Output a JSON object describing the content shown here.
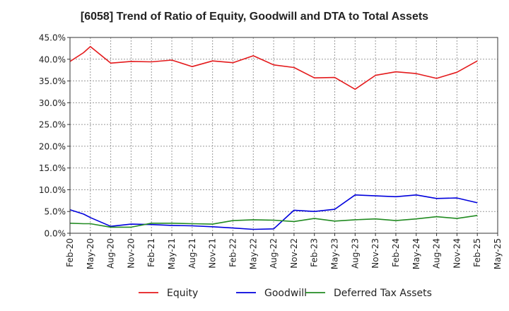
{
  "chart_data": {
    "type": "line",
    "title": "[6058]  Trend of Ratio of Equity, Goodwill and DTA to Total Assets",
    "xlabel": "",
    "ylabel": "",
    "ylim": [
      0,
      45
    ],
    "y_ticks": [
      "0.0%",
      "5.0%",
      "10.0%",
      "15.0%",
      "20.0%",
      "25.0%",
      "30.0%",
      "35.0%",
      "40.0%",
      "45.0%"
    ],
    "x_ticks": [
      "Feb-20",
      "May-20",
      "Aug-20",
      "Nov-20",
      "Feb-21",
      "May-21",
      "Aug-21",
      "Nov-21",
      "Feb-22",
      "May-22",
      "Aug-22",
      "Nov-22",
      "Feb-23",
      "May-23",
      "Aug-23",
      "Nov-23",
      "Feb-24",
      "May-24",
      "Aug-24",
      "Nov-24",
      "Feb-25",
      "May-25"
    ],
    "x": [
      "2020-02",
      "2020-04",
      "2020-05",
      "2020-08",
      "2020-11",
      "2021-02",
      "2021-05",
      "2021-08",
      "2021-11",
      "2022-02",
      "2022-05",
      "2022-08",
      "2022-11",
      "2023-02",
      "2023-05",
      "2023-08",
      "2023-11",
      "2024-02",
      "2024-05",
      "2024-08",
      "2024-11",
      "2025-02"
    ],
    "grid": true,
    "legend_position": "bottom",
    "series": [
      {
        "name": "Equity",
        "color": "#e41a1c",
        "values": [
          39.5,
          41.5,
          42.9,
          39.1,
          39.5,
          39.4,
          39.8,
          38.3,
          39.6,
          39.2,
          40.8,
          38.7,
          38.1,
          35.7,
          35.8,
          33.1,
          36.3,
          37.1,
          36.7,
          35.6,
          37.0,
          39.6
        ]
      },
      {
        "name": "Goodwill",
        "color": "#0000dd",
        "values": [
          5.4,
          4.4,
          3.6,
          1.6,
          2.1,
          2.0,
          1.8,
          1.7,
          1.5,
          1.2,
          0.9,
          1.0,
          5.3,
          5.0,
          5.5,
          8.8,
          8.6,
          8.4,
          8.8,
          8.0,
          8.1,
          7.0
        ]
      },
      {
        "name": "Deferred Tax Assets",
        "color": "#228b22",
        "values": [
          2.3,
          2.2,
          2.2,
          1.4,
          1.4,
          2.3,
          2.3,
          2.2,
          2.1,
          2.9,
          3.1,
          3.0,
          2.7,
          3.4,
          2.8,
          3.1,
          3.3,
          2.9,
          3.3,
          3.8,
          3.4,
          4.1
        ]
      }
    ]
  }
}
